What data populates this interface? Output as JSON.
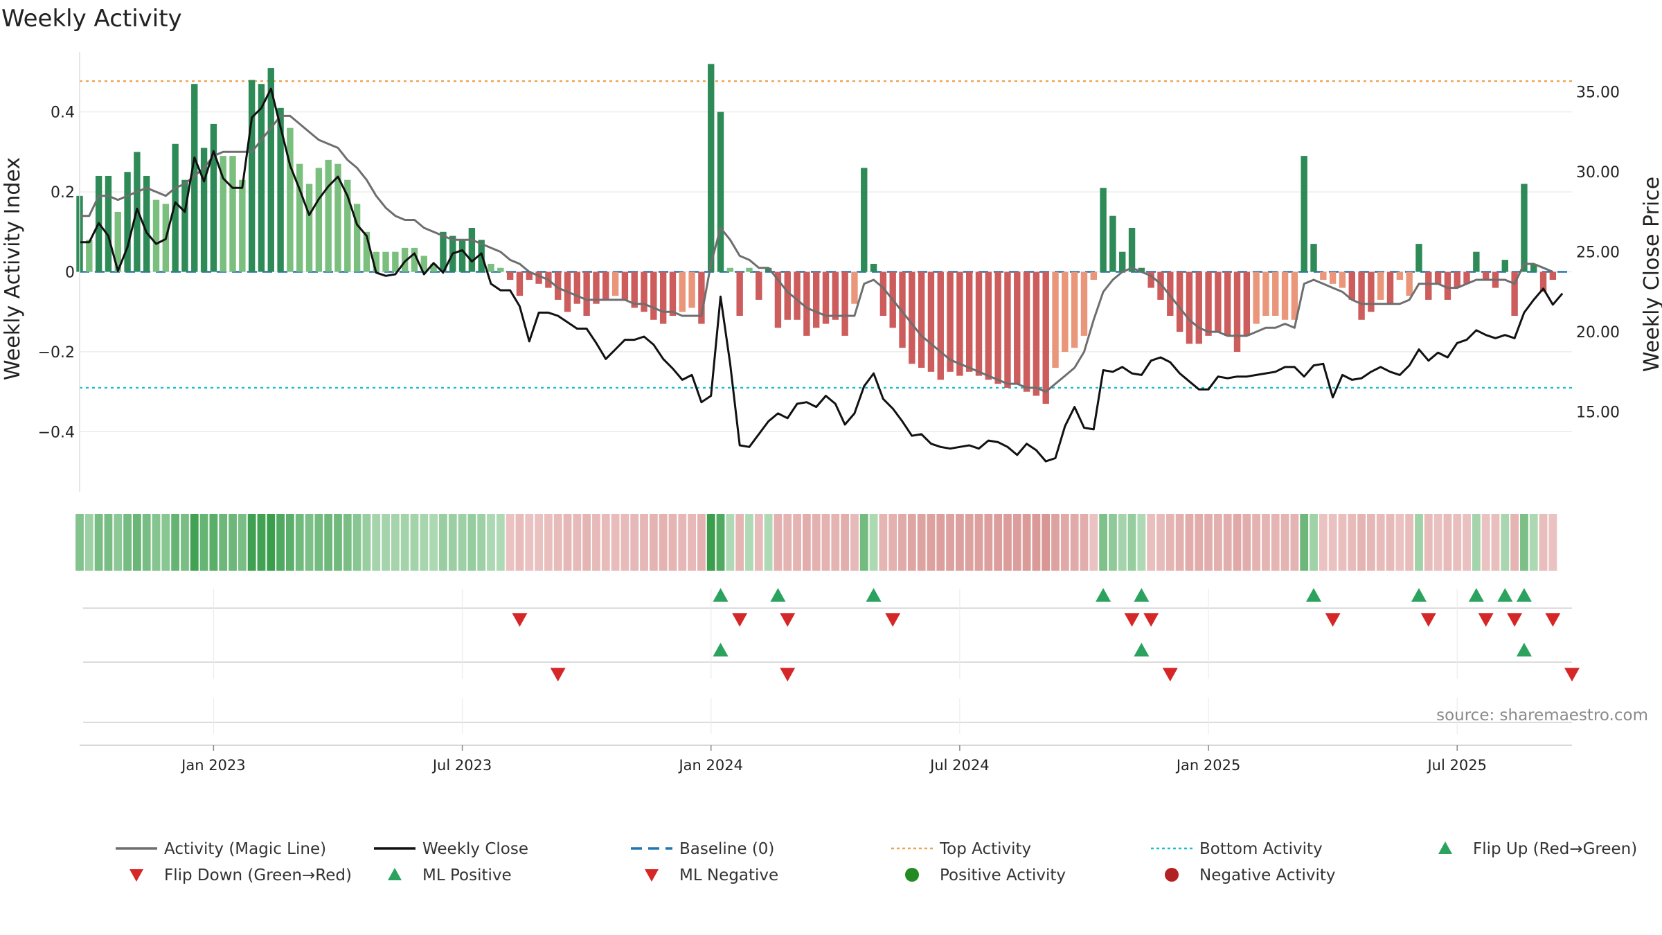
{
  "colors": {
    "pos_dark": "#2e8b57",
    "pos_light": "#7bbf7e",
    "neg_dark": "#cd5c5c",
    "neg_light": "#e9967a",
    "magic": "#6e6e6e",
    "close": "#111111",
    "baseline": "#1f77b4",
    "top": "#f0a04b",
    "bottom": "#17becf",
    "flip_up": "#2ca25f",
    "flip_down": "#d62728",
    "pos_dot": "#238b22",
    "neg_dot": "#b22222"
  },
  "chart_data": {
    "type": "bar",
    "title": "Weekly Activity",
    "ylabel_left": "Weekly Activity Index",
    "ylabel_right": "Weekly Close Price",
    "source": "source: sharemaestro.com",
    "ylim_left": [
      -0.55,
      0.55
    ],
    "ylim_right": [
      10.0,
      37.5
    ],
    "yticks_left": [
      {
        "value": 0.4,
        "label": "0.4"
      },
      {
        "value": 0.2,
        "label": "0.2"
      },
      {
        "value": 0,
        "label": "0"
      },
      {
        "value": -0.2,
        "label": "−0.2"
      },
      {
        "value": -0.4,
        "label": "−0.4"
      }
    ],
    "yticks_right": [
      {
        "value": 35,
        "label": "35.00"
      },
      {
        "value": 30,
        "label": "30.00"
      },
      {
        "value": 25,
        "label": "25.00"
      },
      {
        "value": 20,
        "label": "20.00"
      },
      {
        "value": 15,
        "label": "15.00"
      }
    ],
    "x_range_weeks": [
      0,
      156
    ],
    "xticks": [
      {
        "week": 14,
        "label": "Jan 2023"
      },
      {
        "week": 40,
        "label": "Jul 2023"
      },
      {
        "week": 66,
        "label": "Jan 2024"
      },
      {
        "week": 92,
        "label": "Jul 2024"
      },
      {
        "week": 118,
        "label": "Jan 2025"
      },
      {
        "week": 144,
        "label": "Jul 2025"
      }
    ],
    "top_activity": 0.477,
    "bottom_activity": -0.29,
    "activity": [
      0.19,
      0.08,
      0.24,
      0.24,
      0.15,
      0.25,
      0.3,
      0.24,
      0.18,
      0.17,
      0.32,
      0.23,
      0.47,
      0.31,
      0.37,
      0.29,
      0.29,
      0.23,
      0.48,
      0.47,
      0.51,
      0.41,
      0.36,
      0.27,
      0.22,
      0.26,
      0.28,
      0.27,
      0.23,
      0.17,
      0.1,
      0.05,
      0.05,
      0.05,
      0.06,
      0.06,
      0.04,
      0.02,
      0.1,
      0.09,
      0.08,
      0.11,
      0.08,
      0.02,
      0.01,
      -0.02,
      -0.06,
      -0.02,
      -0.03,
      -0.04,
      -0.07,
      -0.1,
      -0.08,
      -0.11,
      -0.08,
      -0.07,
      -0.06,
      -0.07,
      -0.09,
      -0.1,
      -0.12,
      -0.13,
      -0.11,
      -0.1,
      -0.09,
      -0.13,
      0.52,
      0.4,
      0.01,
      -0.11,
      0.01,
      -0.07,
      0.01,
      -0.14,
      -0.12,
      -0.12,
      -0.16,
      -0.14,
      -0.13,
      -0.12,
      -0.16,
      -0.08,
      0.26,
      0.02,
      -0.11,
      -0.14,
      -0.19,
      -0.23,
      -0.24,
      -0.25,
      -0.27,
      -0.25,
      -0.26,
      -0.25,
      -0.26,
      -0.27,
      -0.28,
      -0.29,
      -0.28,
      -0.3,
      -0.31,
      -0.33,
      -0.24,
      -0.2,
      -0.19,
      -0.16,
      -0.02,
      0.21,
      0.14,
      0.05,
      0.11,
      0.01,
      -0.04,
      -0.07,
      -0.11,
      -0.15,
      -0.18,
      -0.18,
      -0.16,
      -0.15,
      -0.16,
      -0.2,
      -0.16,
      -0.13,
      -0.11,
      -0.11,
      -0.12,
      -0.12,
      0.29,
      0.07,
      -0.02,
      -0.03,
      -0.04,
      -0.07,
      -0.12,
      -0.1,
      -0.07,
      -0.08,
      -0.02,
      -0.06,
      0.07,
      -0.07,
      -0.03,
      -0.07,
      -0.04,
      -0.03,
      0.05,
      -0.02,
      -0.04,
      0.03,
      -0.11,
      0.22,
      0.02,
      -0.05,
      -0.02
    ],
    "magic_line": [
      0.14,
      0.14,
      0.19,
      0.19,
      0.18,
      0.19,
      0.2,
      0.21,
      0.2,
      0.19,
      0.21,
      0.22,
      0.24,
      0.26,
      0.29,
      0.3,
      0.3,
      0.3,
      0.3,
      0.33,
      0.36,
      0.39,
      0.39,
      0.37,
      0.35,
      0.33,
      0.32,
      0.31,
      0.28,
      0.26,
      0.23,
      0.19,
      0.16,
      0.14,
      0.13,
      0.13,
      0.11,
      0.1,
      0.09,
      0.08,
      0.08,
      0.08,
      0.07,
      0.06,
      0.05,
      0.03,
      0.02,
      0.0,
      -0.01,
      -0.02,
      -0.04,
      -0.05,
      -0.06,
      -0.07,
      -0.07,
      -0.07,
      -0.07,
      -0.07,
      -0.08,
      -0.08,
      -0.09,
      -0.1,
      -0.1,
      -0.11,
      -0.11,
      -0.11,
      0.02,
      0.11,
      0.08,
      0.04,
      0.03,
      0.01,
      0.01,
      -0.02,
      -0.05,
      -0.07,
      -0.09,
      -0.1,
      -0.11,
      -0.11,
      -0.11,
      -0.11,
      -0.03,
      -0.02,
      -0.04,
      -0.07,
      -0.1,
      -0.13,
      -0.16,
      -0.18,
      -0.2,
      -0.22,
      -0.23,
      -0.24,
      -0.25,
      -0.26,
      -0.27,
      -0.28,
      -0.28,
      -0.29,
      -0.29,
      -0.3,
      -0.28,
      -0.26,
      -0.24,
      -0.2,
      -0.12,
      -0.05,
      -0.02,
      0.0,
      0.01,
      0.0,
      -0.01,
      -0.03,
      -0.06,
      -0.09,
      -0.12,
      -0.14,
      -0.15,
      -0.15,
      -0.16,
      -0.16,
      -0.16,
      -0.15,
      -0.14,
      -0.14,
      -0.13,
      -0.14,
      -0.03,
      -0.02,
      -0.03,
      -0.04,
      -0.05,
      -0.07,
      -0.08,
      -0.08,
      -0.08,
      -0.08,
      -0.08,
      -0.07,
      -0.03,
      -0.03,
      -0.03,
      -0.04,
      -0.04,
      -0.03,
      -0.02,
      -0.02,
      -0.02,
      -0.02,
      -0.03,
      0.02,
      0.02,
      0.01,
      0.0
    ],
    "weekly_close": [
      25.6,
      25.6,
      26.8,
      26.0,
      23.8,
      25.3,
      27.7,
      26.2,
      25.5,
      25.8,
      28.1,
      27.5,
      30.9,
      29.4,
      31.3,
      29.6,
      29.0,
      29.0,
      33.4,
      34.0,
      35.2,
      32.8,
      30.4,
      28.9,
      27.3,
      28.3,
      29.1,
      29.7,
      28.5,
      26.7,
      26.0,
      23.7,
      23.5,
      23.6,
      24.4,
      24.9,
      23.6,
      24.3,
      23.7,
      24.9,
      25.1,
      24.4,
      24.9,
      23.0,
      22.6,
      22.6,
      21.6,
      19.4,
      21.2,
      21.2,
      21.0,
      20.6,
      20.2,
      20.2,
      19.3,
      18.3,
      18.9,
      19.5,
      19.5,
      19.7,
      19.2,
      18.3,
      17.7,
      17.0,
      17.3,
      15.6,
      16.0,
      22.2,
      18.0,
      12.9,
      12.8,
      13.6,
      14.4,
      14.9,
      14.6,
      15.5,
      15.6,
      15.3,
      16.0,
      15.5,
      14.2,
      14.9,
      16.6,
      17.4,
      15.8,
      15.2,
      14.4,
      13.5,
      13.6,
      13.0,
      12.8,
      12.7,
      12.8,
      12.9,
      12.7,
      13.2,
      13.1,
      12.8,
      12.3,
      13.0,
      12.6,
      11.9,
      12.1,
      14.1,
      15.3,
      14.0,
      13.9,
      17.6,
      17.5,
      17.8,
      17.4,
      17.3,
      18.2,
      18.4,
      18.1,
      17.4,
      16.9,
      16.4,
      16.4,
      17.2,
      17.1,
      17.2,
      17.2,
      17.3,
      17.4,
      17.5,
      17.8,
      17.8,
      17.2,
      17.9,
      18.0,
      15.9,
      17.3,
      17.0,
      17.1,
      17.5,
      17.8,
      17.5,
      17.3,
      17.9,
      18.9,
      18.2,
      18.7,
      18.4,
      19.3,
      19.5,
      20.1,
      19.8,
      19.6,
      19.8,
      19.6,
      21.2,
      22.0,
      22.7,
      21.7,
      22.4
    ]
  },
  "markers": {
    "row1_up_weeks": [
      67,
      73,
      83,
      107,
      111,
      129,
      140,
      146,
      149,
      151
    ],
    "row1_down_weeks": [
      46,
      69,
      74,
      85,
      110,
      112,
      131,
      141,
      147,
      150,
      154
    ],
    "row2_up_weeks": [
      67,
      111,
      151
    ],
    "row2_down_weeks": [
      50,
      74,
      114,
      156
    ]
  },
  "legend": [
    {
      "label": "Activity (Magic Line)",
      "symbol": "line",
      "color": "#6e6e6e"
    },
    {
      "label": "Weekly Close",
      "symbol": "line",
      "color": "#111111"
    },
    {
      "label": "Baseline (0)",
      "symbol": "dash",
      "color": "#1f77b4"
    },
    {
      "label": "Top Activity",
      "symbol": "dot-line",
      "color": "#f0a04b"
    },
    {
      "label": "Bottom Activity",
      "symbol": "dot-line",
      "color": "#17becf"
    },
    {
      "label": "Flip Up (Red→Green)",
      "symbol": "tri-up",
      "color": "#2ca25f"
    },
    {
      "label": "Flip Down (Green→Red)",
      "symbol": "tri-down",
      "color": "#d62728"
    },
    {
      "label": "ML Positive",
      "symbol": "tri-up",
      "color": "#2ca25f"
    },
    {
      "label": "ML Negative",
      "symbol": "tri-down",
      "color": "#d62728"
    },
    {
      "label": "Positive Activity",
      "symbol": "circle",
      "color": "#238b22"
    },
    {
      "label": "Negative Activity",
      "symbol": "circle",
      "color": "#b22222"
    }
  ]
}
